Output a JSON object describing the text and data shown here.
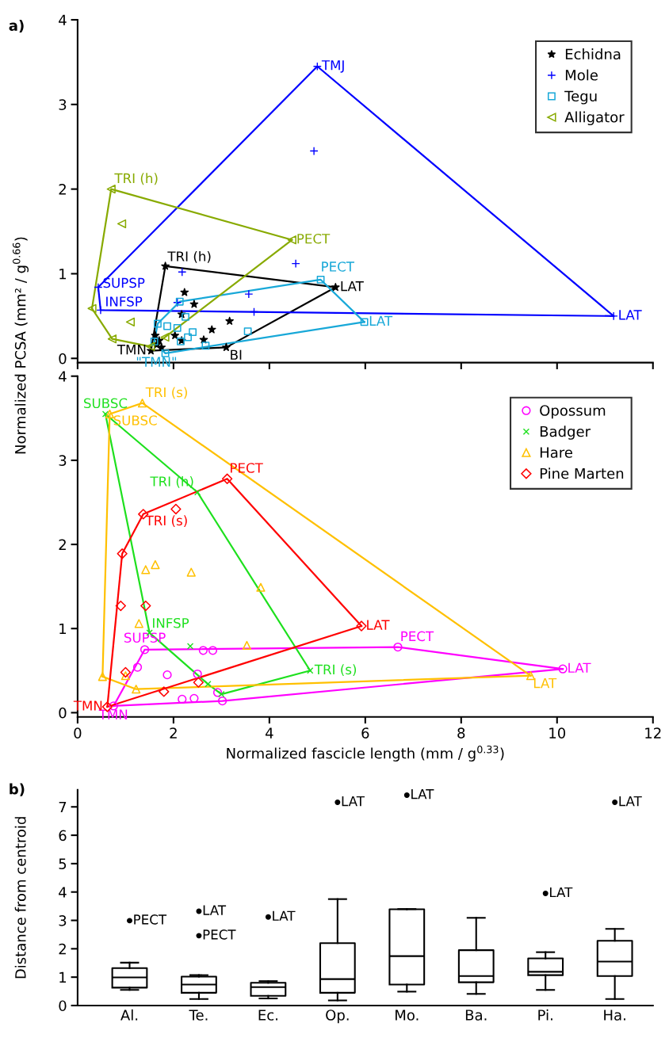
{
  "chart_data": [
    {
      "type": "scatter",
      "ylabel": "Normalized PCSA (mm² / g$^{0.66}$)",
      "annotations": [
        "a)"
      ],
      "xlim": [
        0,
        12
      ],
      "xticks": [
        0,
        2,
        4,
        6,
        8,
        10,
        12
      ],
      "ylim": [
        -0.05,
        4
      ],
      "yticks": [
        0,
        1,
        2,
        3,
        4
      ],
      "tick_labels": "y",
      "legend": "top right",
      "series": [
        {
          "name": "Echidna",
          "color": "#000000",
          "marker": "star",
          "x": [
            1.83,
            5.38,
            3.1,
            1.53,
            2.23,
            2.43,
            2.17,
            3.17,
            2.8,
            2.03,
            2.17,
            2.63,
            1.62,
            1.7,
            1.75,
            1.65
          ],
          "values": [
            1.09,
            0.84,
            0.13,
            0.09,
            0.78,
            0.64,
            0.52,
            0.44,
            0.34,
            0.27,
            0.21,
            0.22,
            0.27,
            0.21,
            0.13,
            0.16
          ],
          "value_labels": [
            "TRI (h)",
            "LAT",
            "BI",
            "TMN",
            null,
            null,
            null,
            null,
            null,
            null,
            null,
            null,
            null,
            null,
            null,
            null
          ]
        },
        {
          "name": "Mole",
          "color": "#0000ff",
          "marker": "plus",
          "x": [
            5.0,
            11.18,
            0.48,
            0.43,
            4.93,
            2.18,
            3.57,
            3.68,
            4.55,
            2.08
          ],
          "values": [
            3.45,
            0.5,
            0.57,
            0.84,
            2.45,
            1.02,
            0.76,
            0.55,
            1.12,
            0.66
          ],
          "value_labels": [
            "TMJ",
            "LAT",
            "INFSP",
            "SUPSP",
            null,
            null,
            null,
            null,
            null,
            null
          ]
        },
        {
          "name": "Tegu",
          "color": "#18a8d8",
          "marker": "square",
          "x": [
            5.07,
            5.98,
            1.83,
            1.67,
            2.13,
            1.87,
            2.08,
            2.25,
            2.4,
            2.3,
            2.15,
            2.67,
            3.55,
            1.6
          ],
          "values": [
            0.93,
            0.43,
            0.06,
            0.41,
            0.67,
            0.38,
            0.36,
            0.49,
            0.31,
            0.25,
            0.2,
            0.15,
            0.32,
            0.2
          ],
          "value_labels": [
            "PECT",
            "LAT",
            "\"TMN\"",
            null,
            null,
            null,
            null,
            null,
            null,
            null,
            null,
            null,
            null,
            null
          ]
        },
        {
          "name": "Alligator",
          "color": "#88aa00",
          "marker": "triangle_left",
          "x": [
            0.7,
            4.47,
            1.82,
            1.52,
            0.72,
            0.3,
            0.92,
            1.1
          ],
          "values": [
            2.0,
            1.4,
            0.25,
            0.14,
            0.23,
            0.59,
            1.59,
            0.43
          ],
          "value_labels": [
            "TRI (h)",
            "PECT",
            null,
            null,
            null,
            null,
            null,
            null
          ]
        },
        {
          "type": "line",
          "color": "#000000",
          "x": [
            1.53,
            1.83,
            5.38
          ],
          "values": [
            0.09,
            1.09,
            0.84
          ]
        },
        {
          "type": "line",
          "color": "#000000",
          "x": [
            1.53,
            3.1,
            5.38
          ],
          "values": [
            0.09,
            0.13,
            0.84
          ]
        },
        {
          "type": "line",
          "color": "#0000ff",
          "x": [
            0.43,
            5.0,
            11.18
          ],
          "values": [
            0.84,
            3.45,
            0.5
          ]
        },
        {
          "type": "line",
          "color": "#0000ff",
          "x": [
            0.43,
            0.48,
            11.18
          ],
          "values": [
            0.84,
            0.57,
            0.5
          ]
        },
        {
          "type": "line",
          "color": "#18a8d8",
          "x": [
            1.6,
            1.67,
            2.13,
            5.07,
            5.98
          ],
          "values": [
            0.2,
            0.41,
            0.67,
            0.93,
            0.43
          ]
        },
        {
          "type": "line",
          "color": "#18a8d8",
          "x": [
            1.6,
            1.83,
            5.98
          ],
          "values": [
            0.2,
            0.06,
            0.43
          ]
        },
        {
          "type": "line",
          "color": "#88aa00",
          "x": [
            0.3,
            0.7,
            4.47
          ],
          "values": [
            0.59,
            2.0,
            1.4
          ]
        },
        {
          "type": "line",
          "color": "#88aa00",
          "x": [
            0.3,
            0.72,
            1.52,
            1.82,
            4.47
          ],
          "values": [
            0.59,
            0.23,
            0.14,
            0.25,
            1.4
          ]
        }
      ]
    },
    {
      "type": "scatter",
      "xlabel": "Normalized fascicle length (mm / g$^{0.33}$)",
      "xlim": [
        0,
        12
      ],
      "xticks": [
        0,
        2,
        4,
        6,
        8,
        10,
        12
      ],
      "ylim": [
        -0.05,
        4
      ],
      "yticks": [
        0,
        1,
        2,
        3,
        4
      ],
      "legend": "top right",
      "series": [
        {
          "name": "Opossum",
          "color": "#ff00ff",
          "marker": "circle",
          "x": [
            1.4,
            6.68,
            10.12,
            0.75,
            3.02,
            1.25,
            1.87,
            2.62,
            2.82,
            2.5,
            2.92,
            2.18,
            2.43
          ],
          "values": [
            0.75,
            0.78,
            0.52,
            0.08,
            0.14,
            0.54,
            0.45,
            0.74,
            0.74,
            0.46,
            0.24,
            0.16,
            0.17
          ],
          "value_labels": [
            "SUPSP",
            "PECT",
            "LAT",
            "TMN",
            null,
            null,
            null,
            null,
            null,
            null,
            null,
            null,
            null
          ]
        },
        {
          "name": "Badger",
          "color": "#1ee01e",
          "marker": "cross",
          "x": [
            0.58,
            2.5,
            4.85,
            1.5,
            3.0,
            2.35,
            2.72
          ],
          "values": [
            3.55,
            2.62,
            0.5,
            0.95,
            0.22,
            0.79,
            0.34
          ],
          "value_labels": [
            "SUBSC",
            "TRI (h)",
            "TRI (s)",
            "INFSP",
            null,
            null,
            null
          ]
        },
        {
          "name": "Hare",
          "color": "#ffc000",
          "marker": "triangle",
          "x": [
            1.35,
            0.67,
            9.45,
            0.52,
            1.22,
            1.42,
            1.62,
            2.37,
            3.82,
            1.28,
            3.53,
            1.0
          ],
          "values": [
            3.68,
            3.55,
            0.44,
            0.43,
            0.28,
            1.7,
            1.76,
            1.67,
            1.49,
            1.06,
            0.8,
            0.44
          ],
          "value_labels": [
            "TRI (s)",
            "SUBSC",
            "LAT",
            null,
            null,
            null,
            null,
            null,
            null,
            null,
            null,
            null
          ]
        },
        {
          "name": "Pine Marten",
          "color": "#ff0000",
          "marker": "diamond",
          "x": [
            3.12,
            1.37,
            5.92,
            0.62,
            0.93,
            2.05,
            0.9,
            1.42,
            1.0,
            1.8,
            2.52
          ],
          "values": [
            2.78,
            2.36,
            1.03,
            0.07,
            1.89,
            2.42,
            1.27,
            1.27,
            0.48,
            0.25,
            0.36
          ],
          "value_labels": [
            "PECT",
            "TRI (s)",
            "LAT",
            "TMN",
            null,
            null,
            null,
            null,
            null,
            null,
            null
          ]
        },
        {
          "type": "line",
          "color": "#ff00ff",
          "x": [
            0.75,
            1.4,
            6.68,
            10.12
          ],
          "values": [
            0.08,
            0.75,
            0.78,
            0.52
          ]
        },
        {
          "type": "line",
          "color": "#ff00ff",
          "x": [
            0.75,
            3.02,
            10.12
          ],
          "values": [
            0.08,
            0.14,
            0.52
          ]
        },
        {
          "type": "line",
          "color": "#1ee01e",
          "x": [
            0.58,
            2.5,
            4.85
          ],
          "values": [
            3.55,
            2.62,
            0.5
          ]
        },
        {
          "type": "line",
          "color": "#1ee01e",
          "x": [
            0.58,
            1.5,
            2.72,
            3.0,
            4.85
          ],
          "values": [
            3.55,
            0.95,
            0.34,
            0.22,
            0.5
          ]
        },
        {
          "type": "line",
          "color": "#ffc000",
          "x": [
            0.52,
            0.67,
            1.35,
            9.45
          ],
          "values": [
            0.43,
            3.55,
            3.68,
            0.44
          ]
        },
        {
          "type": "line",
          "color": "#ffc000",
          "x": [
            0.52,
            1.22,
            9.45
          ],
          "values": [
            0.43,
            0.28,
            0.44
          ]
        },
        {
          "type": "line",
          "color": "#ff0000",
          "x": [
            0.62,
            0.93,
            1.37,
            3.12,
            5.92
          ],
          "values": [
            0.07,
            1.89,
            2.36,
            2.78,
            1.03
          ]
        },
        {
          "type": "line",
          "color": "#ff0000",
          "x": [
            0.62,
            5.92
          ],
          "values": [
            0.07,
            1.03
          ]
        }
      ]
    },
    {
      "type": "box",
      "ylabel": "Distance from centroid",
      "categories": [
        "Al.",
        "Te.",
        "Ec.",
        "Op.",
        "Mo.",
        "Ba.",
        "Pi.",
        "Ha."
      ],
      "ylim": [
        0,
        7.6
      ],
      "yticks": [
        0,
        1,
        2,
        3,
        4,
        5,
        6,
        7
      ],
      "boxes": [
        {
          "low": 0.55,
          "q1": 0.63,
          "median": 0.99,
          "q3": 1.32,
          "high": 1.51,
          "outliers": [
            2.99
          ]
        },
        {
          "low": 0.23,
          "q1": 0.45,
          "median": 0.74,
          "q3": 1.02,
          "high": 1.07,
          "outliers": [
            3.32,
            2.46
          ]
        },
        {
          "low": 0.25,
          "q1": 0.34,
          "median": 0.65,
          "q3": 0.8,
          "high": 0.86,
          "outliers": [
            3.12
          ]
        },
        {
          "low": 0.18,
          "q1": 0.45,
          "median": 0.93,
          "q3": 2.2,
          "high": 3.75,
          "outliers": [
            7.16
          ]
        },
        {
          "low": 0.49,
          "q1": 0.74,
          "median": 1.74,
          "q3": 3.39,
          "high": 3.4,
          "outliers": [
            7.41
          ]
        },
        {
          "low": 0.41,
          "q1": 0.82,
          "median": 1.04,
          "q3": 1.95,
          "high": 3.09
        },
        {
          "low": 0.55,
          "q1": 1.07,
          "median": 1.19,
          "q3": 1.66,
          "high": 1.88,
          "outliers": [
            3.95
          ]
        },
        {
          "low": 0.23,
          "q1": 1.04,
          "median": 1.55,
          "q3": 2.28,
          "high": 2.7,
          "outliers": [
            7.16
          ]
        }
      ],
      "annotations": [
        "b)",
        "PECT",
        "LAT",
        "PECT",
        "LAT",
        "LAT",
        "LAT",
        "LAT",
        "LAT"
      ]
    }
  ]
}
